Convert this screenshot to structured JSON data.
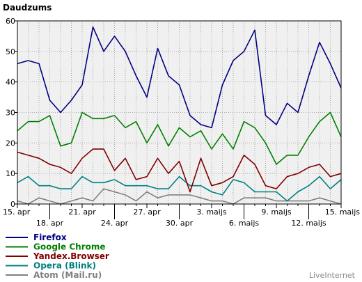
{
  "chart_data": {
    "type": "line",
    "title": "Daudzums",
    "ylim": [
      0,
      60
    ],
    "yticks": [
      0,
      10,
      20,
      30,
      40,
      50,
      60
    ],
    "grid": true,
    "legend_position": "bottom-left",
    "xtick_labels": [
      {
        "index": 0,
        "label": "15. apr"
      },
      {
        "index": 3,
        "label": "18. apr"
      },
      {
        "index": 6,
        "label": "21. apr"
      },
      {
        "index": 9,
        "label": "24. apr"
      },
      {
        "index": 12,
        "label": "27. apr"
      },
      {
        "index": 15,
        "label": "30. apr"
      },
      {
        "index": 18,
        "label": "3. maijs"
      },
      {
        "index": 21,
        "label": "6. maijs"
      },
      {
        "index": 24,
        "label": "9. maijs"
      },
      {
        "index": 27,
        "label": "12. maijs"
      },
      {
        "index": 30,
        "label": "15. maijs"
      }
    ],
    "series": [
      {
        "name": "Firefox",
        "color": "#000080",
        "values": [
          46,
          47,
          46,
          34,
          30,
          34,
          39,
          58,
          50,
          55,
          50,
          42,
          35,
          51,
          42,
          39,
          29,
          26,
          25,
          39,
          47,
          50,
          57,
          29,
          26,
          33,
          30,
          42,
          53,
          46,
          38
        ]
      },
      {
        "name": "Google Chrome",
        "color": "#008000",
        "values": [
          24,
          27,
          27,
          29,
          19,
          20,
          30,
          28,
          28,
          29,
          25,
          27,
          20,
          26,
          19,
          25,
          22,
          24,
          18,
          23,
          18,
          27,
          25,
          20,
          13,
          16,
          16,
          22,
          27,
          30,
          22
        ]
      },
      {
        "name": "Yandex.Browser",
        "color": "#800000",
        "values": [
          17,
          16,
          15,
          13,
          12,
          10,
          15,
          18,
          18,
          11,
          15,
          8,
          9,
          15,
          10,
          14,
          4,
          15,
          6,
          7,
          9,
          16,
          13,
          6,
          5,
          9,
          10,
          12,
          13,
          9,
          10
        ]
      },
      {
        "name": "Opera (Blink)",
        "color": "#008080",
        "values": [
          7,
          9,
          6,
          6,
          5,
          5,
          9,
          7,
          7,
          8,
          6,
          6,
          6,
          5,
          5,
          9,
          6,
          6,
          4,
          3,
          8,
          7,
          4,
          4,
          4,
          1,
          4,
          6,
          9,
          5,
          8
        ]
      },
      {
        "name": "Atom (Mail.ru)",
        "color": "#808080",
        "values": [
          1,
          0,
          2,
          1,
          0,
          1,
          2,
          1,
          5,
          4,
          3,
          1,
          4,
          2,
          3,
          3,
          3,
          2,
          1,
          1,
          0,
          2,
          2,
          2,
          1,
          1,
          1,
          1,
          2,
          1,
          0
        ]
      }
    ]
  },
  "brand": "LiveInternet"
}
